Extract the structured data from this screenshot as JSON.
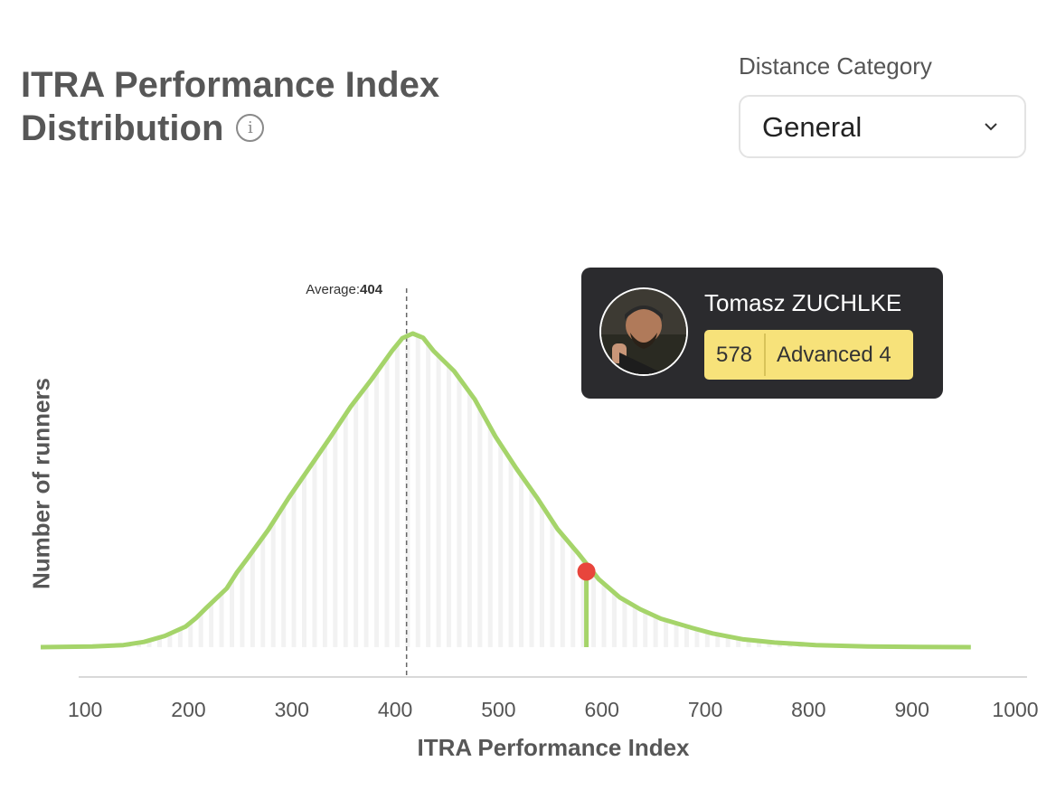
{
  "header": {
    "title_line1": "ITRA Performance Index",
    "title_line2": "Distribution",
    "info_icon": "info-icon"
  },
  "filter": {
    "label": "Distance Category",
    "selected": "General",
    "icon": "chevron-down-icon"
  },
  "runner": {
    "name": "Tomasz ZUCHLKE",
    "score": "578",
    "level": "Advanced 4",
    "badge_color": "#f7e27a"
  },
  "chart_data": {
    "type": "area",
    "xlabel": "ITRA Performance Index",
    "ylabel": "Number of runners",
    "xlim": [
      50,
      1000
    ],
    "ylim": [
      0,
      100
    ],
    "xticks": [
      "100",
      "200",
      "300",
      "400",
      "500",
      "600",
      "700",
      "800",
      "900",
      "1000"
    ],
    "average": {
      "label": "Average:",
      "value": "404",
      "x": 404
    },
    "highlight": {
      "x": 578,
      "y": 21.5,
      "color": "#e8453c"
    },
    "line_color": "#a5d46a",
    "bar_color": "#f2f2f2",
    "x": [
      50,
      100,
      130,
      150,
      170,
      190,
      200,
      210,
      230,
      240,
      250,
      270,
      290,
      310,
      330,
      350,
      370,
      390,
      400,
      410,
      420,
      430,
      450,
      470,
      490,
      510,
      530,
      550,
      570,
      590,
      610,
      630,
      650,
      680,
      700,
      730,
      760,
      800,
      850,
      900,
      950
    ],
    "y": [
      0,
      0.2,
      0.6,
      1.5,
      3.2,
      5.8,
      8.2,
      11.1,
      16.7,
      21.3,
      25.2,
      33.3,
      42.5,
      51.0,
      59.6,
      68.4,
      76.1,
      84.3,
      87.9,
      89.2,
      88.0,
      84.3,
      78.5,
      70.5,
      59.9,
      50.9,
      42.6,
      33.6,
      26.7,
      19.3,
      14.2,
      10.8,
      8.1,
      5.5,
      3.9,
      2.2,
      1.3,
      0.6,
      0.2,
      0.05,
      0
    ]
  }
}
